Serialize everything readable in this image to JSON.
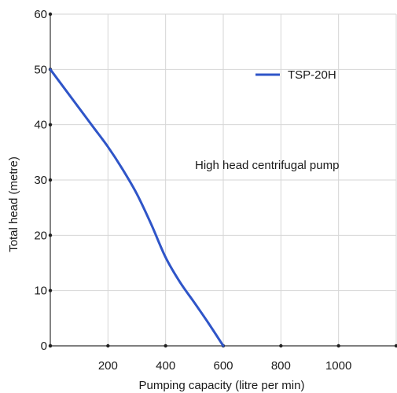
{
  "chart_data": {
    "type": "line",
    "xlabel": "Pumping capacity (litre per min)",
    "ylabel": "Total head (metre)",
    "xlim": [
      0,
      1200
    ],
    "ylim": [
      0,
      60
    ],
    "x_ticks": [
      0,
      200,
      400,
      600,
      800,
      1000,
      1200
    ],
    "x_tick_labels": [
      "",
      "200",
      "400",
      "600",
      "800",
      "1000",
      ""
    ],
    "y_ticks": [
      0,
      10,
      20,
      30,
      40,
      50,
      60
    ],
    "y_tick_labels": [
      "0",
      "10",
      "20",
      "30",
      "40",
      "50",
      "60"
    ],
    "grid": true,
    "legend_position": "top-right",
    "annotation": "High head centrifugal pump",
    "series": [
      {
        "name": "TSP-20H",
        "color": "#2f55c8",
        "x": [
          0,
          50,
          100,
          150,
          200,
          250,
          300,
          350,
          400,
          450,
          500,
          550,
          600
        ],
        "y": [
          50,
          46.5,
          43,
          39.5,
          36,
          32,
          27.5,
          22,
          16,
          11.5,
          7.8,
          4,
          0
        ]
      }
    ]
  }
}
